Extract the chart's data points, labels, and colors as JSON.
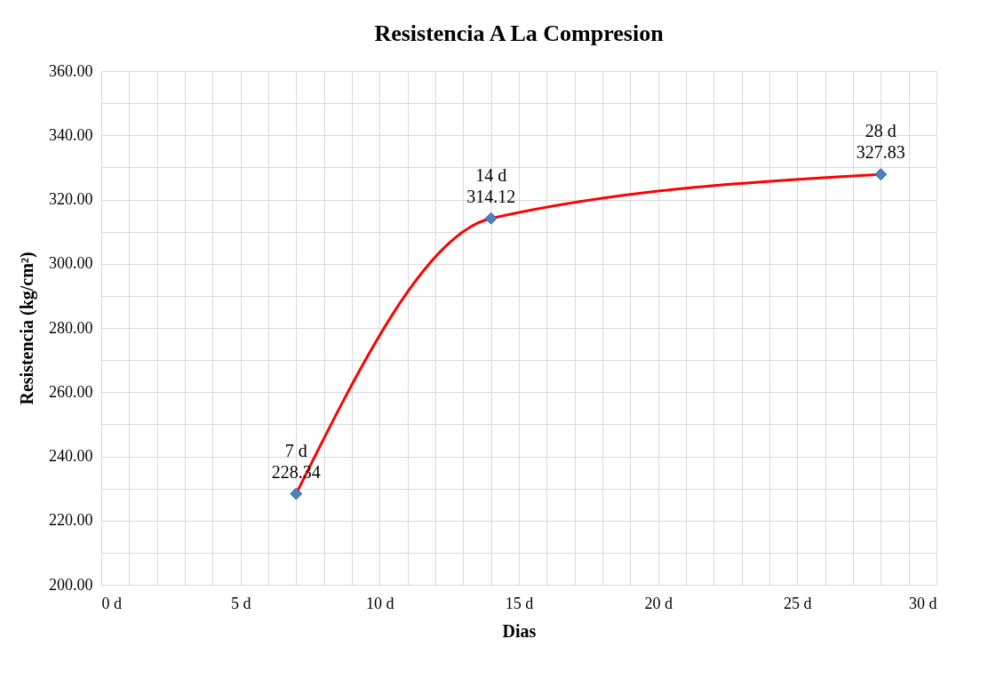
{
  "chart_data": {
    "type": "scatter",
    "title": "Resistencia A La Compresion",
    "xlabel": "Dias",
    "ylabel": "Resistencia (kg/cm²)",
    "x": [
      7,
      14,
      28
    ],
    "series": [
      {
        "type": "line",
        "color": "#ff0000",
        "values": [
          228.34,
          314.12,
          327.83
        ],
        "marker": "none"
      },
      {
        "color": "#4f81bd",
        "values": [
          228.34,
          314.12,
          327.83
        ],
        "marker": "diamond",
        "value_labels": [
          "7 d\n228.34",
          "14 d\n314.12",
          "28 d\n327.83"
        ]
      }
    ],
    "xlim": [
      0,
      30
    ],
    "xticks": [
      {
        "value": 0,
        "label": "0 d"
      },
      {
        "value": 1,
        "label": null
      },
      {
        "value": 2,
        "label": null
      },
      {
        "value": 3,
        "label": null
      },
      {
        "value": 4,
        "label": null
      },
      {
        "value": 5,
        "label": "5 d"
      },
      {
        "value": 6,
        "label": null
      },
      {
        "value": 7,
        "label": null
      },
      {
        "value": 8,
        "label": null
      },
      {
        "value": 9,
        "label": null
      },
      {
        "value": 10,
        "label": "10 d"
      },
      {
        "value": 11,
        "label": null
      },
      {
        "value": 12,
        "label": null
      },
      {
        "value": 13,
        "label": null
      },
      {
        "value": 14,
        "label": null
      },
      {
        "value": 15,
        "label": "15 d"
      },
      {
        "value": 16,
        "label": null
      },
      {
        "value": 17,
        "label": null
      },
      {
        "value": 18,
        "label": null
      },
      {
        "value": 19,
        "label": null
      },
      {
        "value": 20,
        "label": "20 d"
      },
      {
        "value": 21,
        "label": null
      },
      {
        "value": 22,
        "label": null
      },
      {
        "value": 23,
        "label": null
      },
      {
        "value": 24,
        "label": null
      },
      {
        "value": 25,
        "label": "25 d"
      },
      {
        "value": 26,
        "label": null
      },
      {
        "value": 27,
        "label": null
      },
      {
        "value": 28,
        "label": null
      },
      {
        "value": 29,
        "label": null
      },
      {
        "value": 30,
        "label": "30 d"
      }
    ],
    "ylim": [
      200,
      360
    ],
    "yticks": [
      {
        "value": 200,
        "label": "200.00"
      },
      {
        "value": 210,
        "label": null
      },
      {
        "value": 220,
        "label": "220.00"
      },
      {
        "value": 230,
        "label": null
      },
      {
        "value": 240,
        "label": "240.00"
      },
      {
        "value": 250,
        "label": null
      },
      {
        "value": 260,
        "label": "260.00"
      },
      {
        "value": 270,
        "label": null
      },
      {
        "value": 280,
        "label": "280.00"
      },
      {
        "value": 290,
        "label": null
      },
      {
        "value": 300,
        "label": "300.00"
      },
      {
        "value": 310,
        "label": null
      },
      {
        "value": 320,
        "label": "320.00"
      },
      {
        "value": 330,
        "label": null
      },
      {
        "value": 340,
        "label": "340.00"
      },
      {
        "value": 350,
        "label": null
      },
      {
        "value": 360,
        "label": "360.00"
      }
    ],
    "grid": true
  }
}
